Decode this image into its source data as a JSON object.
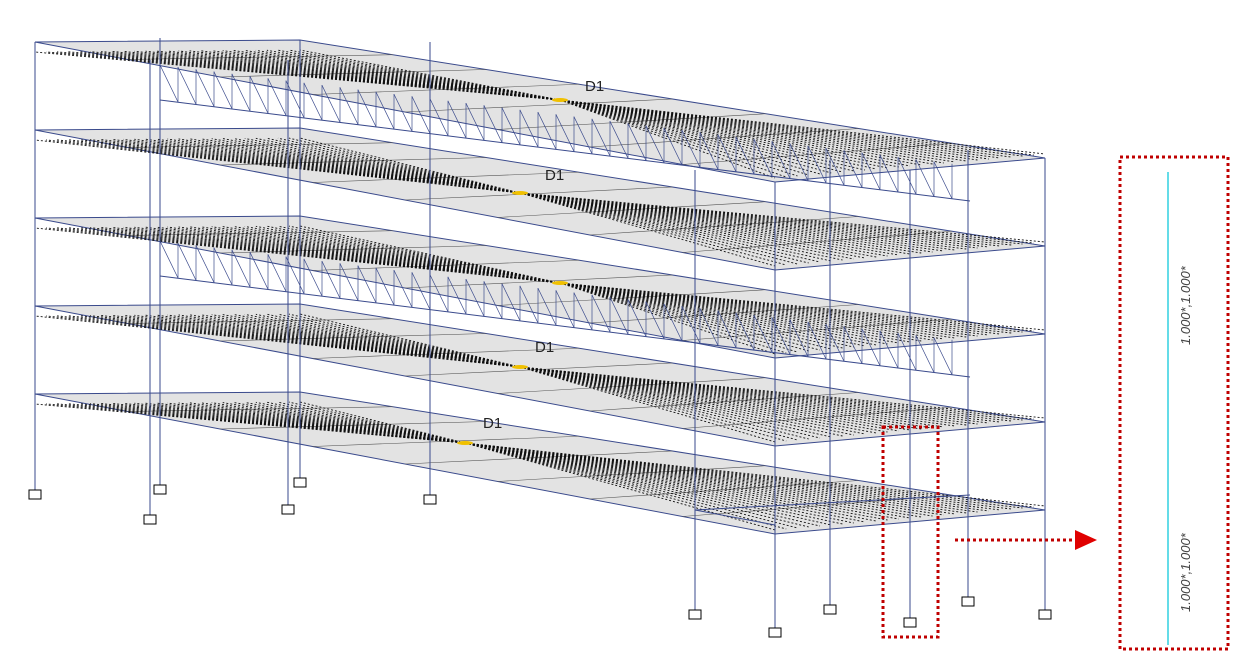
{
  "diaphragm_labels": [
    "D1",
    "D1",
    "D1",
    "D1"
  ],
  "inset": {
    "labels": [
      "1.000*,1.000*",
      "1.000*,1.000*"
    ]
  }
}
